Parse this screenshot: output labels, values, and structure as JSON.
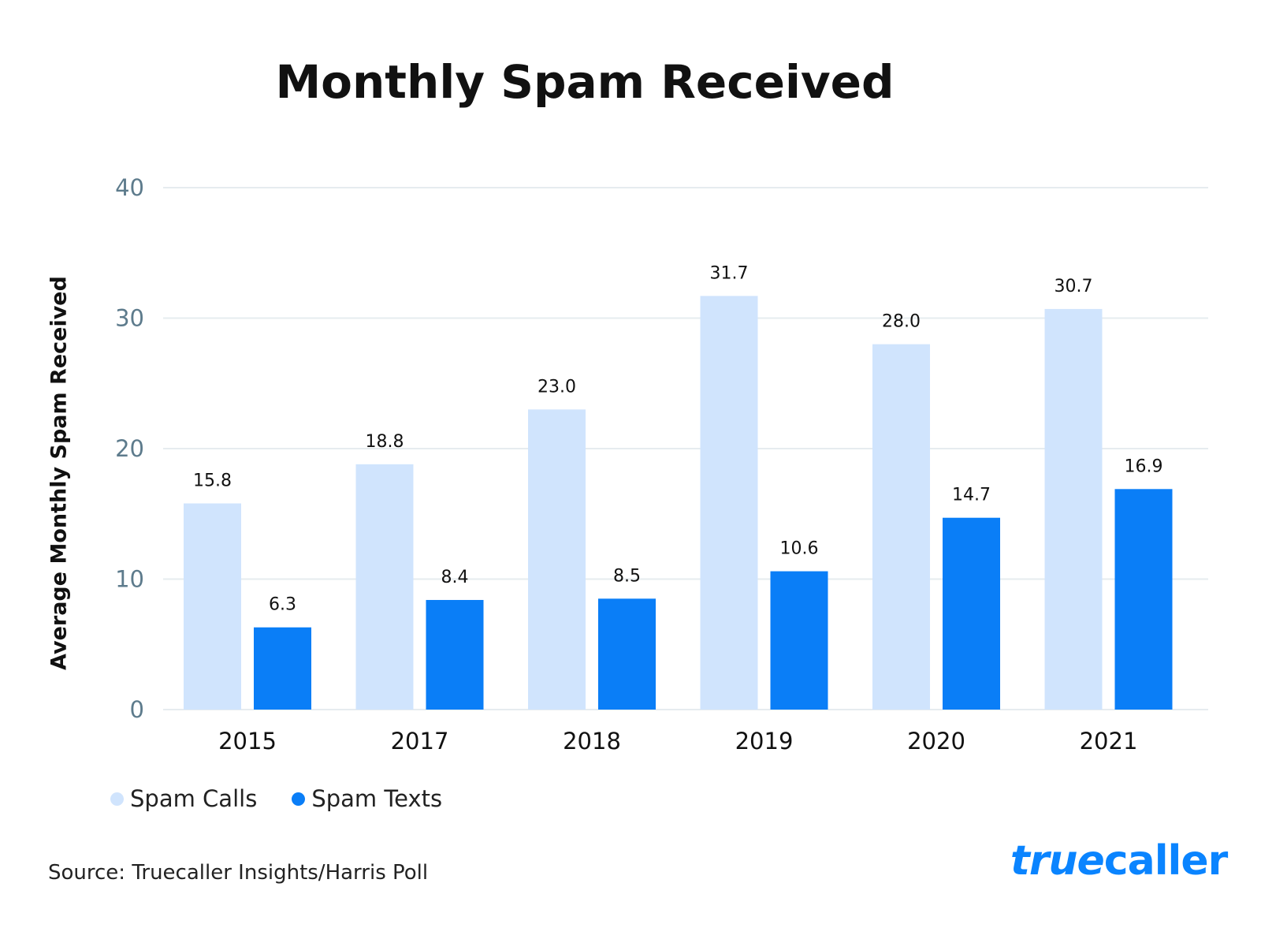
{
  "chart_data": {
    "type": "bar",
    "title": "Monthly Spam Received",
    "ylabel": "Average Monthly Spam Received",
    "xlabel": "",
    "categories": [
      "2015",
      "2017",
      "2018",
      "2019",
      "2020",
      "2021"
    ],
    "series": [
      {
        "name": "Spam Calls",
        "values": [
          15.8,
          18.8,
          23.0,
          31.7,
          28.0,
          30.7
        ],
        "color": "#d0e4fd"
      },
      {
        "name": "Spam Texts",
        "values": [
          6.3,
          8.4,
          8.5,
          10.6,
          14.7,
          16.9
        ],
        "color": "#0a7ef7"
      }
    ],
    "ylim": [
      0,
      40
    ],
    "yticks": [
      0,
      10,
      20,
      30,
      40
    ],
    "grid": true,
    "legend": "bottom-left",
    "data_labels": true
  },
  "source": "Source: Truecaller Insights/Harris Poll",
  "logo": {
    "text_a": "true",
    "text_b": "caller"
  }
}
